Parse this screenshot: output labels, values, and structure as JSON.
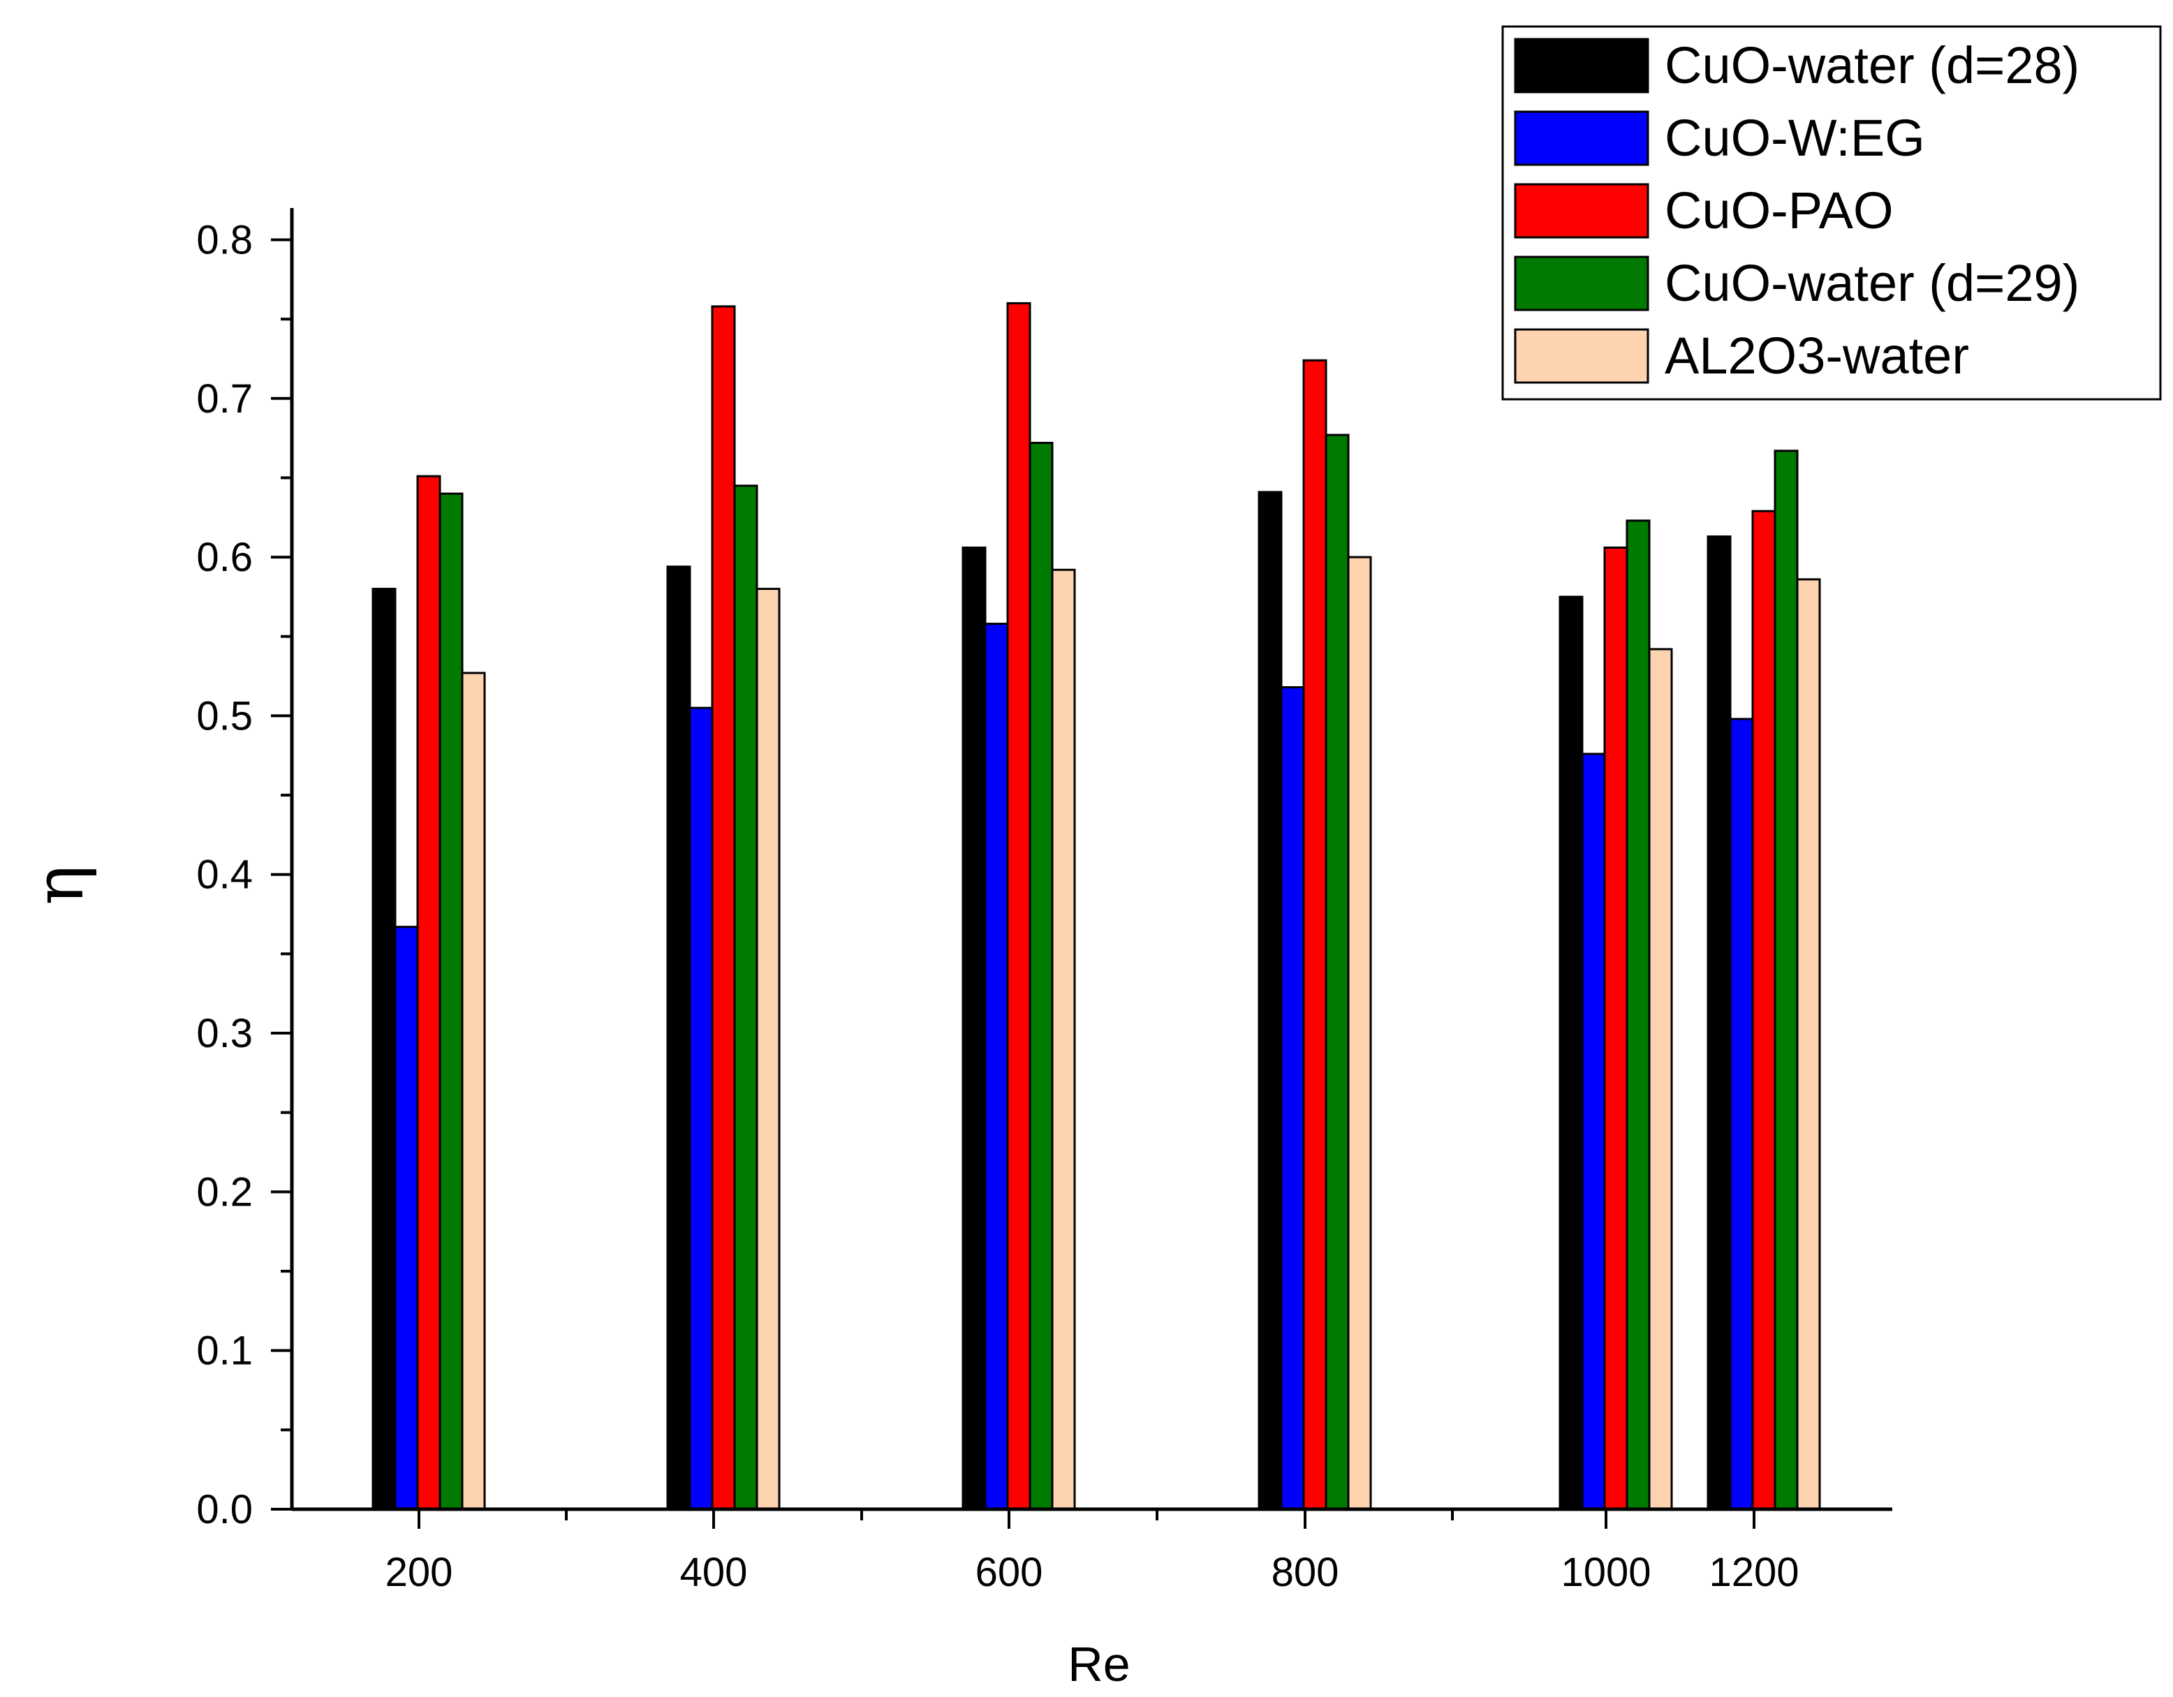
{
  "chart_data": {
    "type": "bar",
    "title": "",
    "xlabel": "Re",
    "ylabel": "η",
    "categories": [
      "200",
      "400",
      "600",
      "800",
      "1000",
      "1200"
    ],
    "ylim": [
      0.0,
      0.82
    ],
    "yticks": [
      "0.0",
      "0.1",
      "0.2",
      "0.3",
      "0.4",
      "0.5",
      "0.6",
      "0.7",
      "0.8"
    ],
    "legend_position": "top-right",
    "series": [
      {
        "name": "CuO-water (d=28)",
        "color": "#000000",
        "values": [
          0.58,
          0.594,
          0.606,
          0.641,
          0.575,
          0.613
        ]
      },
      {
        "name": "CuO-W:EG",
        "color": "#0000ff",
        "values": [
          0.367,
          0.505,
          0.558,
          0.518,
          0.476,
          0.498
        ]
      },
      {
        "name": "CuO-PAO",
        "color": "#ff0000",
        "values": [
          0.651,
          0.758,
          0.76,
          0.724,
          0.606,
          0.629
        ]
      },
      {
        "name": "CuO-water (d=29)",
        "color": "#007a00",
        "values": [
          0.64,
          0.645,
          0.672,
          0.677,
          0.623,
          0.667
        ]
      },
      {
        "name": "AL2O3-water",
        "color": "#fdd3b0",
        "values": [
          0.527,
          0.58,
          0.592,
          0.6,
          0.542,
          0.586
        ]
      }
    ]
  }
}
